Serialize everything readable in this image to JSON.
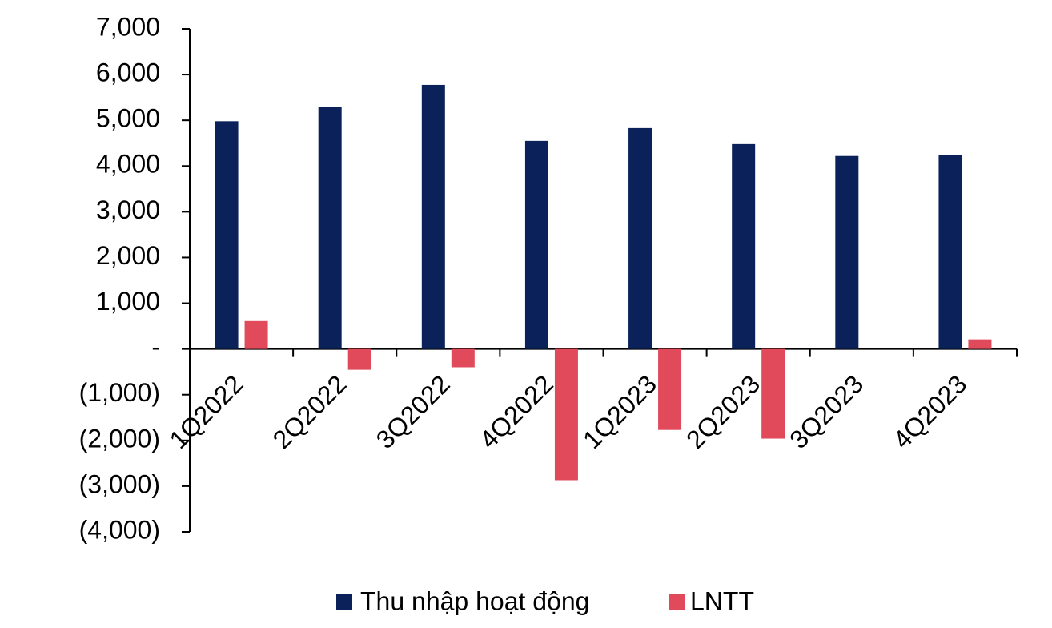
{
  "chart_data": {
    "type": "bar",
    "categories": [
      "1Q2022",
      "2Q2022",
      "3Q2022",
      "4Q2022",
      "1Q2023",
      "2Q2023",
      "3Q2023",
      "4Q2023"
    ],
    "series": [
      {
        "name": "Thu nhập hoạt động",
        "color": "#0a2259",
        "values": [
          4980,
          5300,
          5775,
          4550,
          4830,
          4480,
          4220,
          4235
        ]
      },
      {
        "name": "LNTT",
        "color": "#e04a5a",
        "values": [
          610,
          -455,
          -400,
          -2870,
          -1770,
          -1960,
          0,
          210
        ]
      }
    ],
    "ylim": [
      -4000,
      7000
    ],
    "yticks": [
      {
        "value": 7000,
        "label": "7,000"
      },
      {
        "value": 6000,
        "label": "6,000"
      },
      {
        "value": 5000,
        "label": "5,000"
      },
      {
        "value": 4000,
        "label": "4,000"
      },
      {
        "value": 3000,
        "label": "3,000"
      },
      {
        "value": 2000,
        "label": "2,000"
      },
      {
        "value": 1000,
        "label": "1,000"
      },
      {
        "value": 0,
        "label": "-"
      },
      {
        "value": -1000,
        "label": "(1,000)"
      },
      {
        "value": -2000,
        "label": "(2,000)"
      },
      {
        "value": -3000,
        "label": "(3,000)"
      },
      {
        "value": -4000,
        "label": "(4,000)"
      }
    ],
    "grid": false,
    "legend": "bottom"
  }
}
